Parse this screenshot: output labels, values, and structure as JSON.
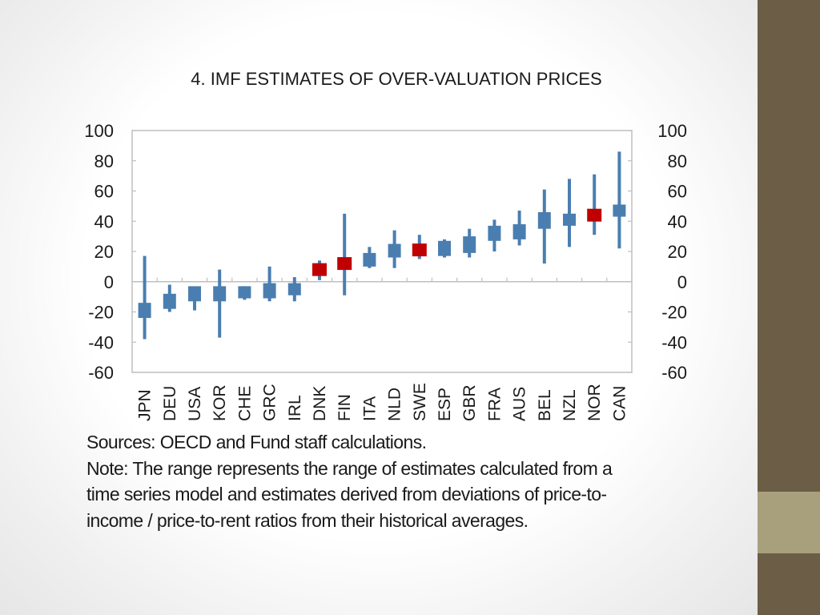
{
  "slide": {
    "title": "4. IMF ESTIMATES OF OVER-VALUATION PRICES"
  },
  "colors": {
    "range_bar": "#4a7eb0",
    "marker_highlight": "#c00000",
    "axis": "#bfbfbf",
    "zero_line": "#bfbfbf",
    "side_bar": "#6b5d46",
    "side_accent": "#a8a07c"
  },
  "chart_data": {
    "type": "range",
    "title": "",
    "xlabel": "",
    "ylabel": "",
    "ylim": [
      -60,
      100
    ],
    "y_ticks": [
      100,
      80,
      60,
      40,
      20,
      0,
      -20,
      -40,
      -60
    ],
    "y_tick_labels": [
      "100",
      "80",
      "60",
      "40",
      "20",
      "0",
      "-20",
      "-40",
      "-60"
    ],
    "grid": false,
    "categories": [
      "JPN",
      "DEU",
      "USA",
      "KOR",
      "CHE",
      "GRC",
      "IRL",
      "DNK",
      "FIN",
      "ITA",
      "NLD",
      "SWE",
      "ESP",
      "GBR",
      "FRA",
      "AUS",
      "BEL",
      "NZL",
      "NOR",
      "CAN"
    ],
    "series": [
      {
        "name": "range_min",
        "values": [
          -38,
          -20,
          -19,
          -37,
          -12,
          -13,
          -13,
          1,
          -9,
          9,
          9,
          15,
          16,
          16,
          20,
          24,
          12,
          23,
          31,
          22
        ]
      },
      {
        "name": "range_max",
        "values": [
          17,
          -2,
          -5,
          8,
          -3,
          10,
          3,
          14,
          45,
          23,
          34,
          31,
          28,
          35,
          41,
          47,
          61,
          68,
          71,
          86
        ]
      },
      {
        "name": "box_low",
        "values": [
          -24,
          -18,
          -13,
          -13,
          -11,
          -11,
          -9,
          5,
          8,
          10,
          16,
          17,
          17,
          19,
          27,
          28,
          35,
          37,
          41,
          43
        ]
      },
      {
        "name": "box_high",
        "values": [
          -14,
          -8,
          -3,
          -3,
          -3,
          -1,
          -1,
          11,
          15,
          19,
          25,
          25,
          27,
          30,
          37,
          38,
          46,
          45,
          47,
          51
        ]
      },
      {
        "name": "highlight",
        "values": [
          null,
          null,
          null,
          null,
          null,
          null,
          null,
          8,
          12,
          null,
          null,
          21,
          null,
          null,
          null,
          null,
          null,
          null,
          44,
          null
        ]
      }
    ]
  },
  "notes": {
    "sources": "Sources: OECD and Fund staff calculations.",
    "note_lines": [
      "Note: The range represents the range of estimates calculated from a",
      "time series model and estimates derived from deviations of price-to-",
      "income / price-to-rent ratios from their historical averages."
    ]
  }
}
